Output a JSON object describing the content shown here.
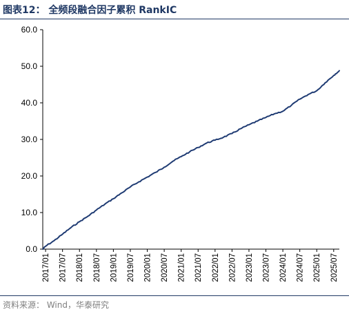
{
  "figure": {
    "title": "图表12： 全频段融合因子累积 RankIC",
    "source": "资料来源： Wind，华泰研究"
  },
  "colors": {
    "line": "#1f3b73",
    "accent": "#1f3864",
    "axis": "#000000"
  },
  "chart_data": {
    "type": "line",
    "title": "",
    "xlabel": "",
    "ylabel": "",
    "ylim": [
      0,
      60
    ],
    "yticks": [
      "0.0",
      "10.0",
      "20.0",
      "30.0",
      "40.0",
      "50.0",
      "60.0"
    ],
    "xtick_labels": [
      "2017/01",
      "2017/07",
      "2018/01",
      "2018/07",
      "2019/01",
      "2019/07",
      "2020/01",
      "2020/07",
      "2021/01",
      "2021/07",
      "2022/01",
      "2022/07",
      "2023/01",
      "2023/07",
      "2024/01",
      "2024/07",
      "2025/01",
      "2025/07"
    ],
    "grid": false,
    "legend": "none",
    "series": [
      {
        "x": [
          "2016/12",
          "2017/01",
          "2017/04",
          "2017/07",
          "2017/10",
          "2018/01",
          "2018/04",
          "2018/07",
          "2018/10",
          "2019/01",
          "2019/04",
          "2019/07",
          "2019/10",
          "2020/01",
          "2020/04",
          "2020/07",
          "2020/10",
          "2021/01",
          "2021/04",
          "2021/07",
          "2021/10",
          "2022/01",
          "2022/04",
          "2022/07",
          "2022/10",
          "2023/01",
          "2023/04",
          "2023/07",
          "2023/10",
          "2024/01",
          "2024/04",
          "2024/07",
          "2024/10",
          "2025/01",
          "2025/04",
          "2025/07",
          "2025/09"
        ],
        "values": [
          0.0,
          0.8,
          2.3,
          4.1,
          5.9,
          7.5,
          9.0,
          10.7,
          12.3,
          13.8,
          15.4,
          17.0,
          18.4,
          19.7,
          21.0,
          22.4,
          24.0,
          25.3,
          26.6,
          27.8,
          29.0,
          29.8,
          30.6,
          31.6,
          32.9,
          34.0,
          35.0,
          36.0,
          37.0,
          37.7,
          39.3,
          41.0,
          42.3,
          43.3,
          45.5,
          47.5,
          48.8
        ]
      }
    ]
  }
}
